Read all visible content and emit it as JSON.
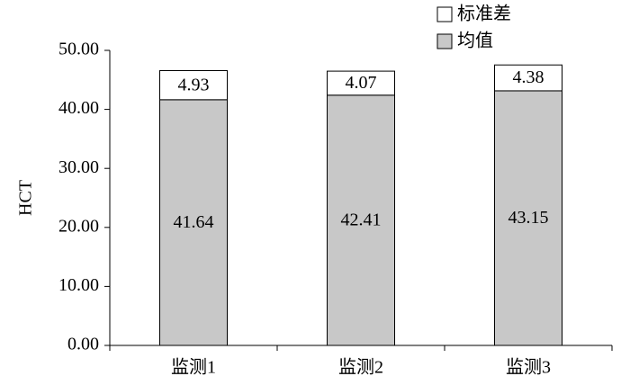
{
  "chart_data": {
    "type": "stacked-bar",
    "y_label": "HCT",
    "categories": [
      "监测1",
      "监测2",
      "监测3"
    ],
    "series": [
      {
        "name": "均值",
        "color": "#c8c8c8",
        "values": [
          41.64,
          42.41,
          43.15
        ]
      },
      {
        "name": "标准差",
        "color": "#ffffff",
        "values": [
          4.93,
          4.07,
          4.38
        ]
      }
    ],
    "ylim": [
      0,
      50
    ],
    "yticks": [
      {
        "value": 0,
        "label": "0.00"
      },
      {
        "value": 10,
        "label": "10.00"
      },
      {
        "value": 20,
        "label": "20.00"
      },
      {
        "value": 30,
        "label": "30.00"
      },
      {
        "value": 40,
        "label": "40.00"
      },
      {
        "value": 50,
        "label": "50.00"
      }
    ],
    "legend": "top-right",
    "grid": false
  }
}
